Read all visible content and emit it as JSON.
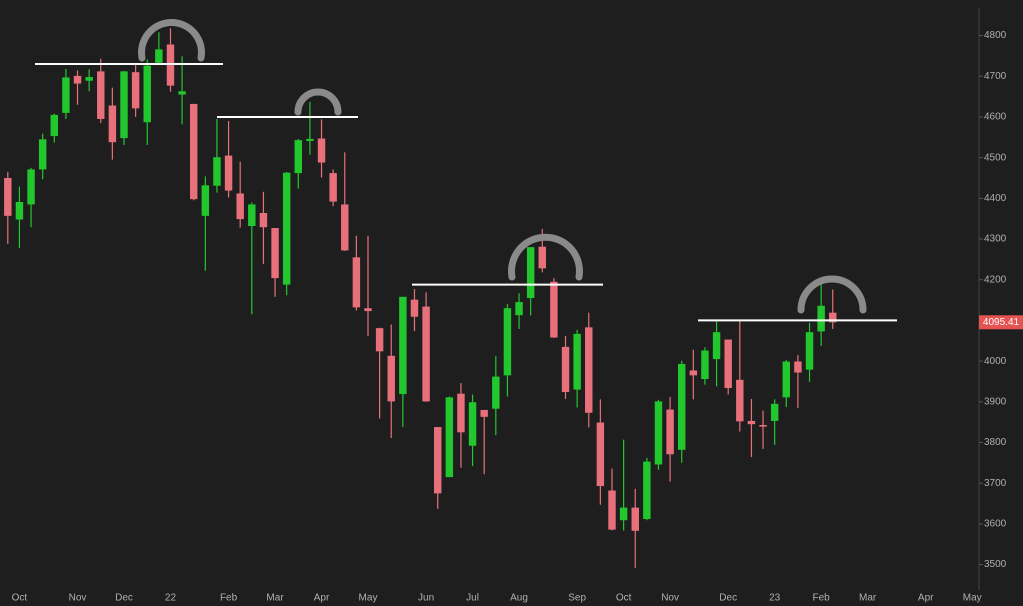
{
  "chart_data": {
    "type": "candlestick",
    "categories": [
      null,
      "Oct",
      null,
      null,
      null,
      null,
      "Nov",
      null,
      null,
      null,
      "Dec",
      null,
      null,
      null,
      "22",
      null,
      null,
      null,
      null,
      "Feb",
      null,
      null,
      null,
      "Mar",
      null,
      null,
      null,
      "Apr",
      null,
      null,
      null,
      "May",
      null,
      null,
      null,
      null,
      "Jun",
      null,
      null,
      null,
      "Jul",
      null,
      null,
      null,
      "Aug",
      null,
      null,
      null,
      null,
      "Sep",
      null,
      null,
      null,
      "Oct",
      null,
      null,
      null,
      "Nov",
      null,
      null,
      null,
      null,
      "Dec",
      null,
      null,
      null,
      "23",
      null,
      null,
      null,
      "Feb",
      null,
      null,
      null,
      "Mar",
      null,
      null,
      null,
      null,
      "Apr",
      null,
      null,
      null,
      "May"
    ],
    "open": [
      4450,
      4348,
      4385,
      4471,
      4553,
      4610,
      4701,
      4689,
      4712,
      4628,
      4548,
      4710,
      4587,
      4733,
      4778,
      4655,
      4632,
      4357,
      4431,
      4505,
      4412,
      4332,
      4364,
      4327,
      4188,
      4462,
      4541,
      4547,
      4462,
      4385,
      4255,
      4130,
      4081,
      4013,
      3919,
      4151,
      4134,
      3838,
      3715,
      3920,
      3792,
      3880,
      3883,
      3965,
      4113,
      4155,
      4281,
      4195,
      4035,
      3930,
      4083,
      3849,
      3682,
      3609,
      3640,
      3612,
      3746,
      3881,
      3782,
      3977,
      3956,
      4005,
      4053,
      3954,
      3853,
      3843,
      3853,
      3911,
      3999,
      3979,
      4073,
      4119,
      null,
      null,
      null,
      null,
      null,
      null,
      null,
      null,
      null,
      null,
      null,
      null
    ],
    "high": [
      4465,
      4429,
      4475,
      4559,
      4608,
      4718,
      4714,
      4717,
      4743,
      4672,
      4713,
      4731,
      4741,
      4808,
      4818,
      4749,
      4632,
      4454,
      4595,
      4590,
      4490,
      4390,
      4416,
      4327,
      4465,
      4546,
      4637,
      4594,
      4471,
      4513,
      4308,
      4308,
      4082,
      4090,
      4158,
      4177,
      4169,
      3838,
      3913,
      3946,
      3918,
      3880,
      4012,
      4140,
      4167,
      4280,
      4325,
      4204,
      4062,
      4077,
      4119,
      3906,
      3736,
      3807,
      3686,
      3762,
      3905,
      3912,
      4001,
      4028,
      4034,
      4100,
      4053,
      4101,
      3907,
      3878,
      3906,
      4003,
      4015,
      4094,
      4195,
      4176,
      null,
      null,
      null,
      null,
      null,
      null,
      null,
      null,
      null,
      null,
      null,
      null
    ],
    "low": [
      4288,
      4278,
      4329,
      4447,
      4537,
      4595,
      4630,
      4663,
      4585,
      4495,
      4531,
      4600,
      4531,
      4733,
      4662,
      4582,
      4395,
      4222,
      4414,
      4402,
      4328,
      4115,
      4239,
      4158,
      4162,
      4424,
      4507,
      4451,
      4381,
      4271,
      4124,
      4062,
      3859,
      3811,
      3838,
      4074,
      3900,
      3637,
      3715,
      3738,
      3742,
      3722,
      3818,
      3913,
      4079,
      4112,
      4218,
      4057,
      3907,
      3886,
      3837,
      3647,
      3584,
      3584,
      3492,
      3609,
      3733,
      3704,
      3750,
      3906,
      3942,
      3938,
      3918,
      3827,
      3764,
      3784,
      3794,
      3887,
      3885,
      3949,
      4037,
      4079,
      null,
      null,
      null,
      null,
      null,
      null,
      null,
      null,
      null,
      null,
      null,
      null
    ],
    "close": [
      4357,
      4391,
      4471,
      4545,
      4605,
      4697,
      4682,
      4698,
      4595,
      4538,
      4712,
      4621,
      4726,
      4766,
      4677,
      4663,
      4398,
      4432,
      4501,
      4419,
      4349,
      4385,
      4329,
      4204,
      4463,
      4543,
      4546,
      4488,
      4392,
      4272,
      4132,
      4123,
      4024,
      3901,
      4158,
      4109,
      3901,
      3675,
      3911,
      3825,
      3899,
      3863,
      3962,
      4130,
      4145,
      4280,
      4228,
      4058,
      3924,
      4067,
      3873,
      3693,
      3586,
      3640,
      3583,
      3753,
      3901,
      3771,
      3993,
      3965,
      4026,
      4071,
      3934,
      3852,
      3845,
      3839,
      3895,
      3999,
      3972,
      4071,
      4136,
      4095.41,
      null,
      null,
      null,
      null,
      null,
      null,
      null,
      null,
      null,
      null,
      null,
      null
    ],
    "up_color": "#22c72e",
    "down_color": "#e8707a",
    "level_color": "#ffffff",
    "levels": [
      4730,
      4600,
      4188,
      4100
    ],
    "ylim": [
      3440,
      4880
    ],
    "yticks": [
      3500,
      3600,
      3700,
      3800,
      3900,
      4000,
      4100,
      4200,
      4300,
      4400,
      4500,
      4600,
      4700,
      4800
    ]
  }
}
